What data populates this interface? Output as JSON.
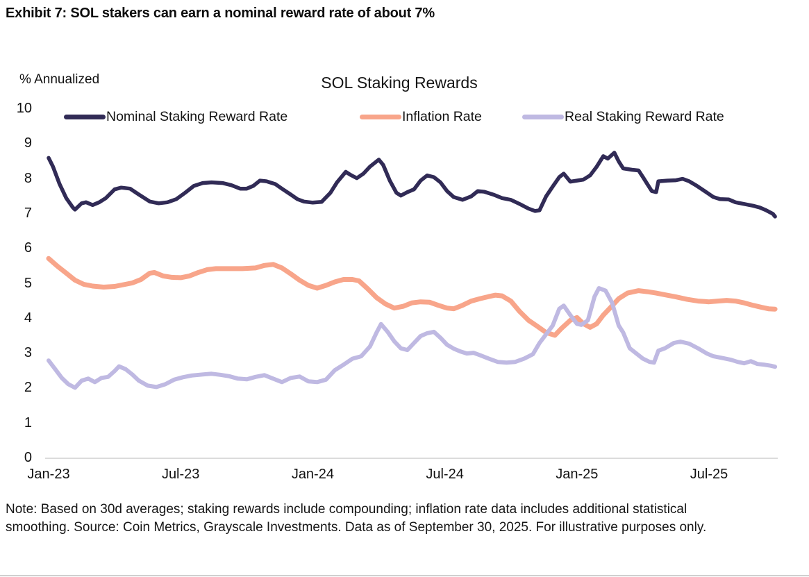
{
  "exhibit_title": "Exhibit 7: SOL stakers can earn a nominal reward rate of about 7%",
  "note": "Note: Based on 30d averages; staking rewards include compounding; inflation rate data includes additional statistical smoothing. Source: Coin Metrics, Grayscale Investments. Data as of September 30, 2025. For illustrative purposes only.",
  "chart_data": {
    "type": "line",
    "title": "SOL Staking Rewards",
    "ylabel": "% Annualized",
    "xlabel": "",
    "ylim": [
      0,
      10
    ],
    "y_ticks": [
      0,
      1,
      2,
      3,
      4,
      5,
      6,
      7,
      8,
      9,
      10
    ],
    "grid": false,
    "legend_position": "top",
    "x_unit": "months since Jan-2023",
    "x_ticks": [
      {
        "month": 0,
        "label": "Jan-23"
      },
      {
        "month": 6,
        "label": "Jul-23"
      },
      {
        "month": 12,
        "label": "Jan-24"
      },
      {
        "month": 18,
        "label": "Jul-24"
      },
      {
        "month": 24,
        "label": "Jan-25"
      },
      {
        "month": 30,
        "label": "Jul-25"
      }
    ],
    "series": [
      {
        "name": "Nominal Staking Reward Rate",
        "color": "#312b56",
        "stroke_width": 5.5,
        "points": [
          [
            0,
            8.6
          ],
          [
            0.2,
            8.35
          ],
          [
            0.5,
            7.85
          ],
          [
            0.8,
            7.45
          ],
          [
            1.1,
            7.18
          ],
          [
            1.2,
            7.12
          ],
          [
            1.5,
            7.3
          ],
          [
            1.7,
            7.33
          ],
          [
            2,
            7.25
          ],
          [
            2.3,
            7.33
          ],
          [
            2.6,
            7.45
          ],
          [
            3,
            7.7
          ],
          [
            3.3,
            7.75
          ],
          [
            3.7,
            7.72
          ],
          [
            4.1,
            7.55
          ],
          [
            4.6,
            7.35
          ],
          [
            5,
            7.3
          ],
          [
            5.4,
            7.33
          ],
          [
            5.8,
            7.42
          ],
          [
            6.2,
            7.6
          ],
          [
            6.6,
            7.8
          ],
          [
            7,
            7.88
          ],
          [
            7.4,
            7.9
          ],
          [
            7.9,
            7.88
          ],
          [
            8.3,
            7.82
          ],
          [
            8.7,
            7.72
          ],
          [
            9,
            7.72
          ],
          [
            9.3,
            7.8
          ],
          [
            9.6,
            7.95
          ],
          [
            9.9,
            7.93
          ],
          [
            10.3,
            7.85
          ],
          [
            10.6,
            7.72
          ],
          [
            11,
            7.55
          ],
          [
            11.3,
            7.42
          ],
          [
            11.6,
            7.35
          ],
          [
            12,
            7.32
          ],
          [
            12.4,
            7.34
          ],
          [
            12.8,
            7.6
          ],
          [
            13.1,
            7.9
          ],
          [
            13.5,
            8.2
          ],
          [
            13.7,
            8.12
          ],
          [
            14,
            8.02
          ],
          [
            14.3,
            8.15
          ],
          [
            14.6,
            8.35
          ],
          [
            15,
            8.55
          ],
          [
            15.2,
            8.4
          ],
          [
            15.5,
            7.95
          ],
          [
            15.8,
            7.6
          ],
          [
            16,
            7.52
          ],
          [
            16.3,
            7.62
          ],
          [
            16.6,
            7.7
          ],
          [
            16.9,
            7.95
          ],
          [
            17.2,
            8.1
          ],
          [
            17.5,
            8.05
          ],
          [
            17.8,
            7.9
          ],
          [
            18.1,
            7.65
          ],
          [
            18.4,
            7.48
          ],
          [
            18.8,
            7.4
          ],
          [
            19.2,
            7.5
          ],
          [
            19.5,
            7.65
          ],
          [
            19.8,
            7.63
          ],
          [
            20.2,
            7.55
          ],
          [
            20.6,
            7.45
          ],
          [
            21,
            7.4
          ],
          [
            21.4,
            7.28
          ],
          [
            21.8,
            7.15
          ],
          [
            22.1,
            7.08
          ],
          [
            22.3,
            7.1
          ],
          [
            22.6,
            7.5
          ],
          [
            22.9,
            7.78
          ],
          [
            23.2,
            8.05
          ],
          [
            23.4,
            8.15
          ],
          [
            23.7,
            7.92
          ],
          [
            24,
            7.95
          ],
          [
            24.3,
            7.98
          ],
          [
            24.6,
            8.1
          ],
          [
            24.9,
            8.35
          ],
          [
            25.2,
            8.65
          ],
          [
            25.4,
            8.58
          ],
          [
            25.7,
            8.75
          ],
          [
            25.9,
            8.5
          ],
          [
            26.1,
            8.3
          ],
          [
            26.5,
            8.26
          ],
          [
            26.8,
            8.24
          ],
          [
            27,
            8.05
          ],
          [
            27.2,
            7.85
          ],
          [
            27.4,
            7.65
          ],
          [
            27.6,
            7.62
          ],
          [
            27.7,
            7.93
          ],
          [
            28.1,
            7.95
          ],
          [
            28.5,
            7.96
          ],
          [
            28.8,
            8.0
          ],
          [
            29.1,
            7.93
          ],
          [
            29.4,
            7.82
          ],
          [
            29.8,
            7.65
          ],
          [
            30.2,
            7.48
          ],
          [
            30.5,
            7.42
          ],
          [
            30.9,
            7.41
          ],
          [
            31.2,
            7.33
          ],
          [
            31.6,
            7.28
          ],
          [
            32,
            7.23
          ],
          [
            32.3,
            7.18
          ],
          [
            32.6,
            7.1
          ],
          [
            32.9,
            7.0
          ],
          [
            33,
            6.92
          ]
        ]
      },
      {
        "name": "Inflation Rate",
        "color": "#f8a58a",
        "stroke_width": 7,
        "points": [
          [
            0,
            5.72
          ],
          [
            0.4,
            5.5
          ],
          [
            0.8,
            5.3
          ],
          [
            1.2,
            5.1
          ],
          [
            1.6,
            4.98
          ],
          [
            2,
            4.93
          ],
          [
            2.5,
            4.9
          ],
          [
            3,
            4.92
          ],
          [
            3.4,
            4.97
          ],
          [
            3.8,
            5.02
          ],
          [
            4.2,
            5.12
          ],
          [
            4.6,
            5.3
          ],
          [
            4.8,
            5.32
          ],
          [
            5.2,
            5.22
          ],
          [
            5.6,
            5.18
          ],
          [
            6,
            5.17
          ],
          [
            6.4,
            5.22
          ],
          [
            6.8,
            5.32
          ],
          [
            7.2,
            5.4
          ],
          [
            7.6,
            5.43
          ],
          [
            8.2,
            5.43
          ],
          [
            8.8,
            5.43
          ],
          [
            9.4,
            5.45
          ],
          [
            9.8,
            5.52
          ],
          [
            10.2,
            5.55
          ],
          [
            10.6,
            5.45
          ],
          [
            11,
            5.28
          ],
          [
            11.4,
            5.1
          ],
          [
            11.8,
            4.95
          ],
          [
            12.2,
            4.87
          ],
          [
            12.6,
            4.95
          ],
          [
            13,
            5.05
          ],
          [
            13.4,
            5.12
          ],
          [
            13.8,
            5.12
          ],
          [
            14.1,
            5.08
          ],
          [
            14.5,
            4.85
          ],
          [
            14.9,
            4.6
          ],
          [
            15.3,
            4.42
          ],
          [
            15.7,
            4.3
          ],
          [
            16.1,
            4.35
          ],
          [
            16.5,
            4.45
          ],
          [
            16.9,
            4.48
          ],
          [
            17.3,
            4.47
          ],
          [
            17.7,
            4.38
          ],
          [
            18.1,
            4.3
          ],
          [
            18.4,
            4.28
          ],
          [
            18.8,
            4.38
          ],
          [
            19.2,
            4.5
          ],
          [
            19.6,
            4.57
          ],
          [
            20,
            4.63
          ],
          [
            20.3,
            4.67
          ],
          [
            20.6,
            4.65
          ],
          [
            21,
            4.5
          ],
          [
            21.4,
            4.2
          ],
          [
            21.8,
            3.95
          ],
          [
            22.2,
            3.78
          ],
          [
            22.6,
            3.6
          ],
          [
            23,
            3.52
          ],
          [
            23.3,
            3.72
          ],
          [
            23.7,
            3.95
          ],
          [
            24,
            4.03
          ],
          [
            24.3,
            3.85
          ],
          [
            24.6,
            3.75
          ],
          [
            24.9,
            3.85
          ],
          [
            25.2,
            4.1
          ],
          [
            25.5,
            4.3
          ],
          [
            25.9,
            4.57
          ],
          [
            26.3,
            4.73
          ],
          [
            26.8,
            4.8
          ],
          [
            27.2,
            4.77
          ],
          [
            27.6,
            4.73
          ],
          [
            28,
            4.68
          ],
          [
            28.5,
            4.62
          ],
          [
            29,
            4.55
          ],
          [
            29.5,
            4.5
          ],
          [
            30,
            4.48
          ],
          [
            30.4,
            4.5
          ],
          [
            30.8,
            4.52
          ],
          [
            31.2,
            4.5
          ],
          [
            31.6,
            4.45
          ],
          [
            32,
            4.38
          ],
          [
            32.4,
            4.32
          ],
          [
            32.7,
            4.28
          ],
          [
            33,
            4.27
          ]
        ]
      },
      {
        "name": "Real Staking Reward Rate",
        "color": "#bfb9e2",
        "stroke_width": 6,
        "points": [
          [
            0,
            2.8
          ],
          [
            0.3,
            2.55
          ],
          [
            0.6,
            2.3
          ],
          [
            0.9,
            2.12
          ],
          [
            1.2,
            2.02
          ],
          [
            1.5,
            2.22
          ],
          [
            1.8,
            2.28
          ],
          [
            2.1,
            2.18
          ],
          [
            2.4,
            2.3
          ],
          [
            2.7,
            2.33
          ],
          [
            3,
            2.5
          ],
          [
            3.2,
            2.63
          ],
          [
            3.5,
            2.55
          ],
          [
            3.8,
            2.4
          ],
          [
            4.1,
            2.22
          ],
          [
            4.5,
            2.08
          ],
          [
            4.9,
            2.04
          ],
          [
            5.3,
            2.12
          ],
          [
            5.7,
            2.25
          ],
          [
            6.1,
            2.32
          ],
          [
            6.5,
            2.37
          ],
          [
            7,
            2.4
          ],
          [
            7.4,
            2.42
          ],
          [
            7.8,
            2.39
          ],
          [
            8.2,
            2.35
          ],
          [
            8.6,
            2.28
          ],
          [
            9,
            2.26
          ],
          [
            9.4,
            2.33
          ],
          [
            9.8,
            2.38
          ],
          [
            10.2,
            2.28
          ],
          [
            10.6,
            2.18
          ],
          [
            11,
            2.3
          ],
          [
            11.4,
            2.34
          ],
          [
            11.8,
            2.2
          ],
          [
            12.2,
            2.18
          ],
          [
            12.6,
            2.25
          ],
          [
            13,
            2.52
          ],
          [
            13.4,
            2.68
          ],
          [
            13.8,
            2.85
          ],
          [
            14.2,
            2.92
          ],
          [
            14.6,
            3.2
          ],
          [
            14.9,
            3.6
          ],
          [
            15.1,
            3.84
          ],
          [
            15.4,
            3.62
          ],
          [
            15.7,
            3.35
          ],
          [
            16,
            3.15
          ],
          [
            16.3,
            3.1
          ],
          [
            16.6,
            3.3
          ],
          [
            16.9,
            3.5
          ],
          [
            17.2,
            3.58
          ],
          [
            17.5,
            3.62
          ],
          [
            17.8,
            3.45
          ],
          [
            18.1,
            3.25
          ],
          [
            18.4,
            3.14
          ],
          [
            18.7,
            3.06
          ],
          [
            19,
            3.0
          ],
          [
            19.3,
            3.02
          ],
          [
            19.6,
            2.95
          ],
          [
            20,
            2.85
          ],
          [
            20.4,
            2.76
          ],
          [
            20.8,
            2.74
          ],
          [
            21.2,
            2.76
          ],
          [
            21.6,
            2.85
          ],
          [
            22,
            2.98
          ],
          [
            22.3,
            3.3
          ],
          [
            22.6,
            3.55
          ],
          [
            22.9,
            3.8
          ],
          [
            23.2,
            4.28
          ],
          [
            23.4,
            4.37
          ],
          [
            23.7,
            4.1
          ],
          [
            24,
            3.85
          ],
          [
            24.2,
            3.82
          ],
          [
            24.5,
            3.95
          ],
          [
            24.8,
            4.63
          ],
          [
            25,
            4.87
          ],
          [
            25.3,
            4.8
          ],
          [
            25.6,
            4.45
          ],
          [
            25.9,
            3.8
          ],
          [
            26.1,
            3.6
          ],
          [
            26.4,
            3.15
          ],
          [
            26.7,
            3.0
          ],
          [
            27,
            2.85
          ],
          [
            27.3,
            2.76
          ],
          [
            27.5,
            2.74
          ],
          [
            27.7,
            3.08
          ],
          [
            28,
            3.15
          ],
          [
            28.4,
            3.3
          ],
          [
            28.7,
            3.34
          ],
          [
            29.1,
            3.28
          ],
          [
            29.5,
            3.15
          ],
          [
            29.9,
            3.0
          ],
          [
            30.2,
            2.92
          ],
          [
            30.6,
            2.87
          ],
          [
            31,
            2.82
          ],
          [
            31.3,
            2.76
          ],
          [
            31.6,
            2.72
          ],
          [
            31.9,
            2.78
          ],
          [
            32.2,
            2.7
          ],
          [
            32.5,
            2.68
          ],
          [
            32.8,
            2.65
          ],
          [
            33,
            2.62
          ]
        ]
      }
    ]
  }
}
